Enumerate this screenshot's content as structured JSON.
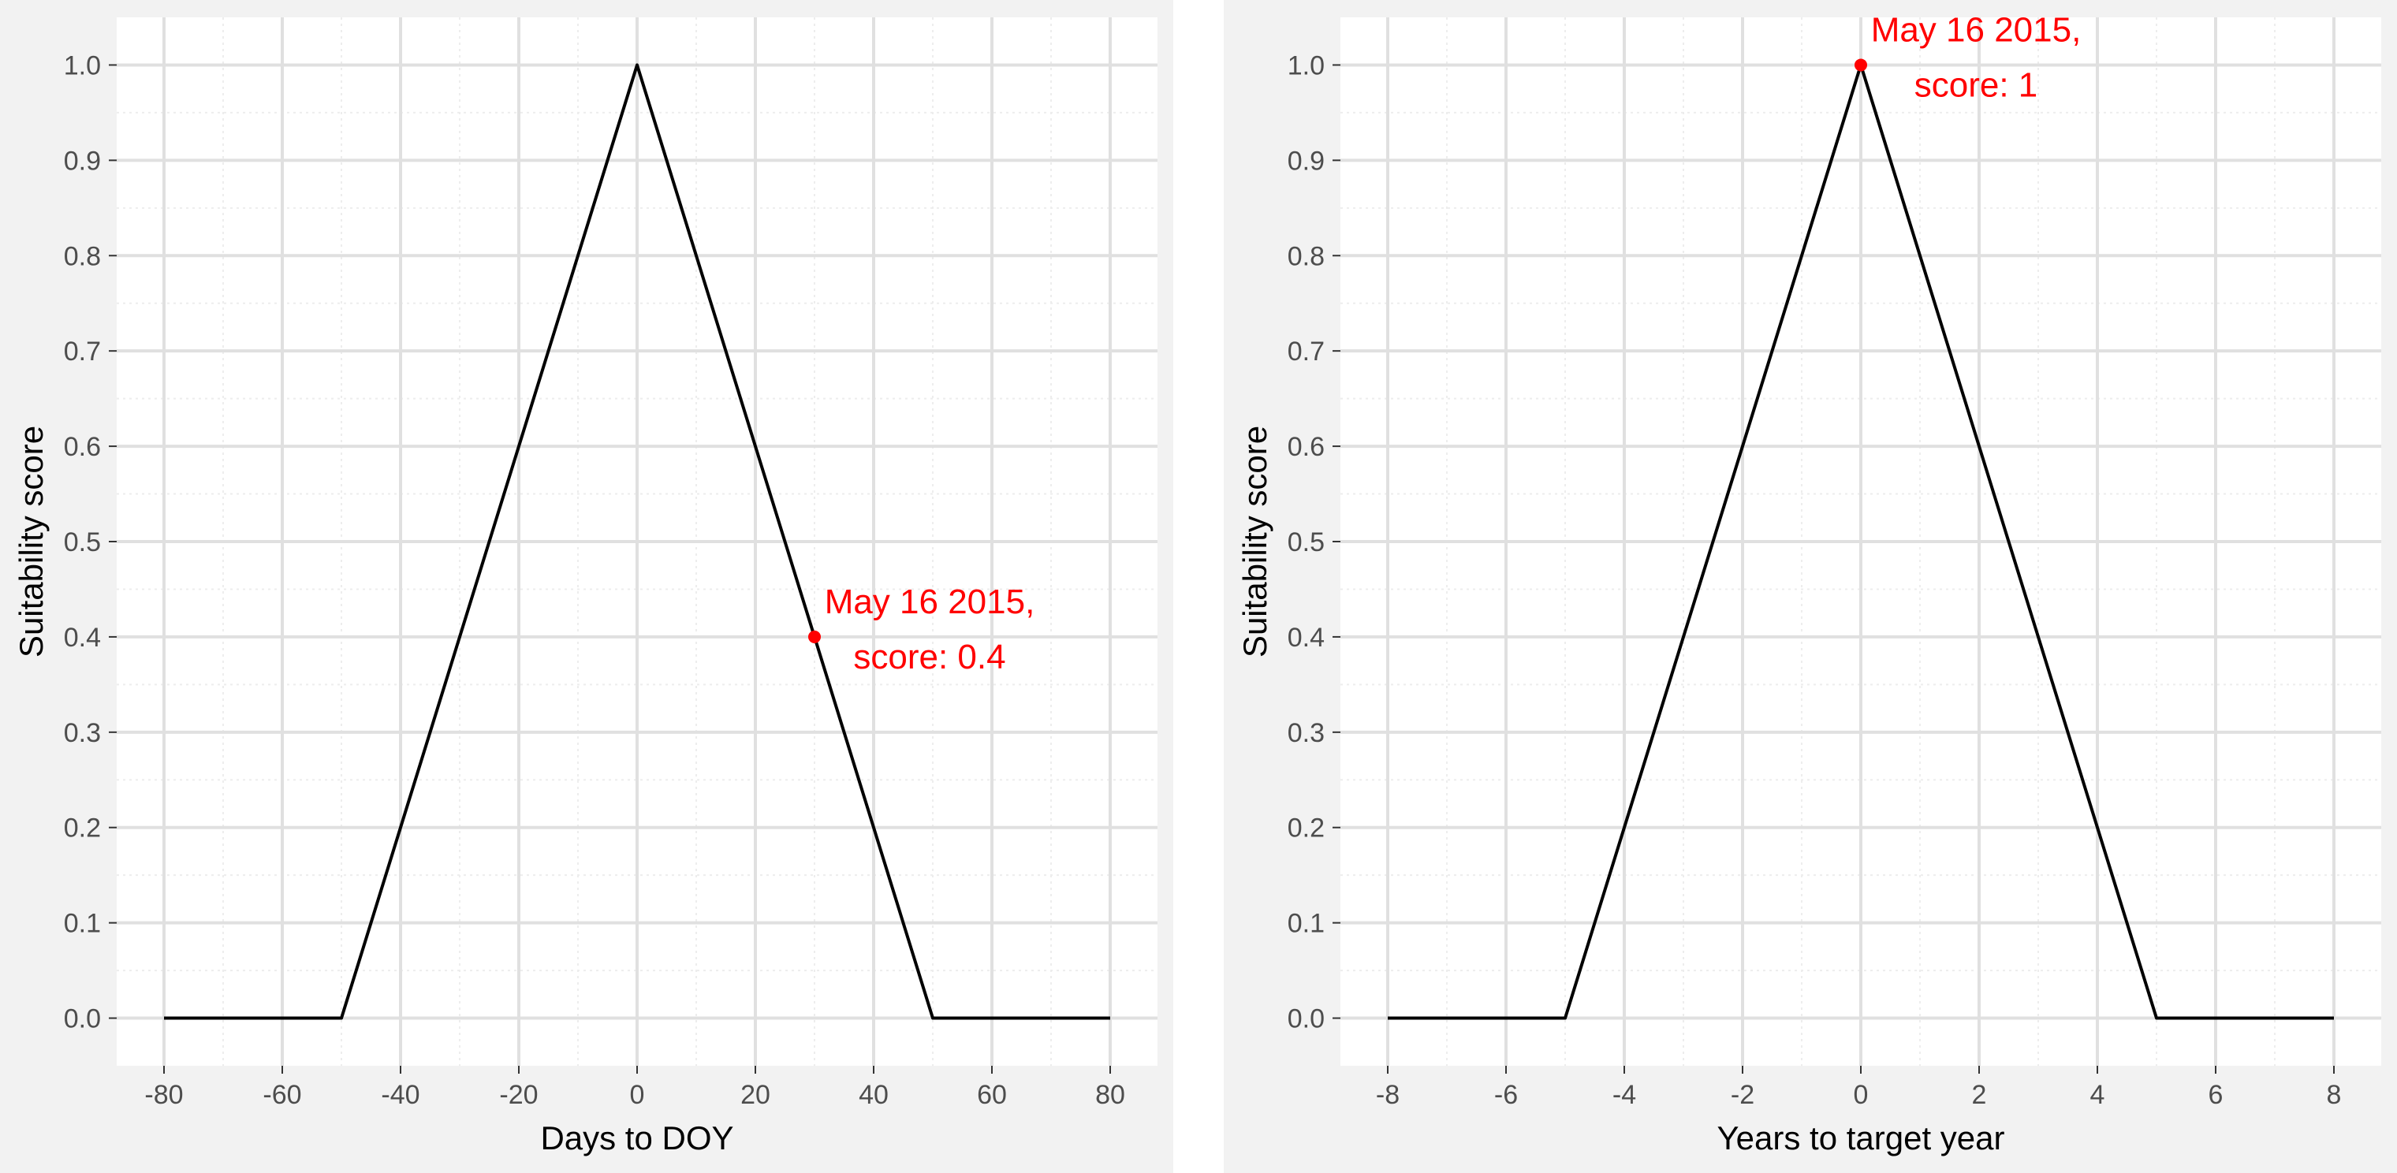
{
  "colors": {
    "panel_background": "#f2f2f2",
    "plot_background": "#ffffff",
    "grid_major": "#e0e0e0",
    "grid_minor": "#ededed",
    "line": "#000000",
    "highlight": "#ff0000",
    "tick_text": "#4d4d4d"
  },
  "chart_data": [
    {
      "type": "line",
      "title": "",
      "xlabel": "Days to DOY",
      "ylabel": "Suitability score",
      "xlim": [
        -88,
        88
      ],
      "ylim": [
        -0.05,
        1.05
      ],
      "x_ticks": [
        -80,
        -60,
        -40,
        -20,
        0,
        20,
        40,
        60,
        80
      ],
      "y_ticks": [
        0.0,
        0.1,
        0.2,
        0.3,
        0.4,
        0.5,
        0.6,
        0.7,
        0.8,
        0.9,
        1.0
      ],
      "x_minor_step": 10,
      "y_minor_step": 0.05,
      "grid": true,
      "x": [
        -80,
        -50,
        0,
        50,
        80
      ],
      "y": [
        0,
        0,
        1,
        0,
        0
      ],
      "highlight": {
        "x": 30,
        "y": 0.4,
        "label_lines": [
          "May 16 2015,",
          "score: 0.4"
        ]
      }
    },
    {
      "type": "line",
      "title": "",
      "xlabel": "Years to target year",
      "ylabel": "Suitability score",
      "xlim": [
        -8.8,
        8.8
      ],
      "ylim": [
        -0.05,
        1.05
      ],
      "x_ticks": [
        -8,
        -6,
        -4,
        -2,
        0,
        2,
        4,
        6,
        8
      ],
      "y_ticks": [
        0.0,
        0.1,
        0.2,
        0.3,
        0.4,
        0.5,
        0.6,
        0.7,
        0.8,
        0.9,
        1.0
      ],
      "x_minor_step": 1,
      "y_minor_step": 0.05,
      "grid": true,
      "x": [
        -8,
        -5,
        0,
        5,
        8
      ],
      "y": [
        0,
        0,
        1,
        0,
        0
      ],
      "highlight": {
        "x": 0,
        "y": 1,
        "label_lines": [
          "May 16 2015,",
          "score: 1"
        ]
      }
    }
  ]
}
